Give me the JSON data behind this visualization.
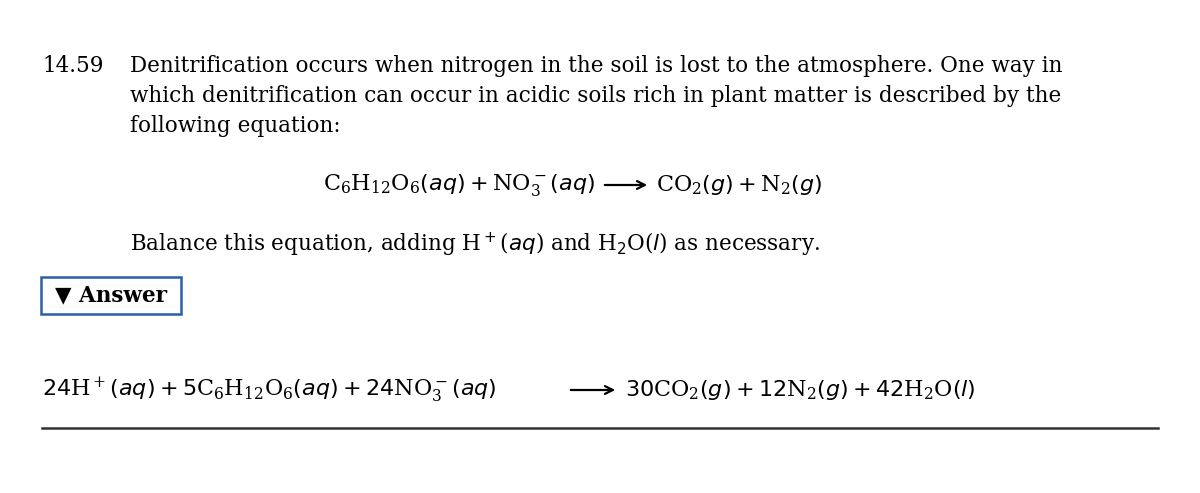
{
  "problem_number": "14.59",
  "background_color": "#ffffff",
  "text_color": "#000000",
  "figsize": [
    12.0,
    4.93
  ],
  "dpi": 100,
  "line1": "Denitrification occurs when nitrogen in the soil is lost to the atmosphere. One way in",
  "line2": "which denitrification can occur in acidic soils rich in plant matter is described by the",
  "line3": "following equation:",
  "border_color": "#2b5fa8",
  "bottom_line_color": "#333333"
}
